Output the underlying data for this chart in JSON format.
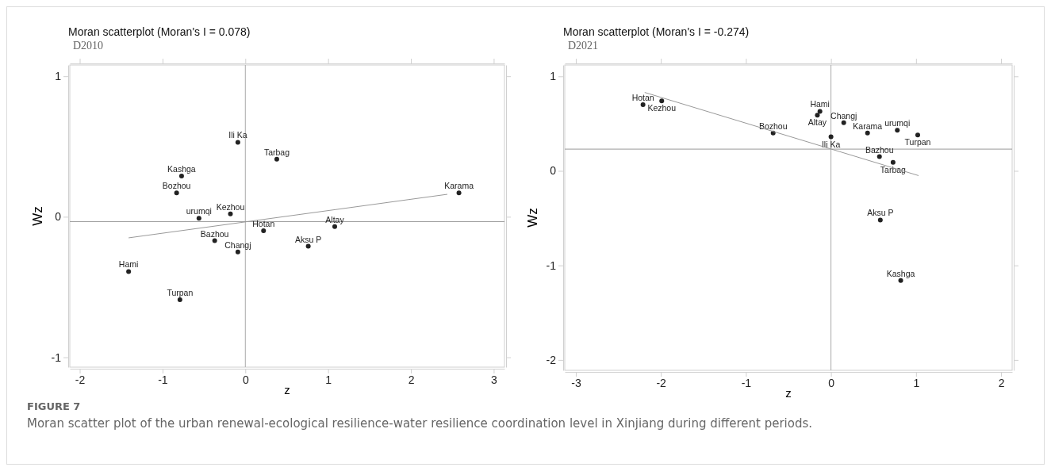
{
  "chart_data": [
    {
      "type": "scatter",
      "title": "Moran scatterplot (Moran's I = 0.078)",
      "subtitle": "D2010",
      "xlabel": "z",
      "ylabel": "Wz",
      "xlim": [
        -2.12,
        3.13
      ],
      "ylim": [
        -1.07,
        1.08
      ],
      "xticks": [
        -2,
        -1,
        0,
        1,
        2,
        3
      ],
      "yticks": [
        -1,
        0,
        1
      ],
      "grid": false,
      "marker": "circle",
      "ref_lines": [
        {
          "axis": "x",
          "value": 0,
          "color": "#aaaaaa"
        },
        {
          "axis": "y",
          "value": -0.034,
          "color": "#999999"
        }
      ],
      "series": [
        {
          "type": "scatter",
          "color": "#222222",
          "x": [
            -0.09,
            0.38,
            -0.77,
            -0.83,
            2.58,
            -0.18,
            -0.56,
            0.22,
            1.08,
            -0.37,
            0.76,
            -0.09,
            -1.41,
            -0.79
          ],
          "values": [
            0.53,
            0.41,
            0.29,
            0.17,
            0.17,
            0.02,
            -0.01,
            -0.1,
            -0.07,
            -0.17,
            -0.21,
            -0.25,
            -0.39,
            -0.59
          ],
          "value_labels": [
            "Ili Ka",
            "Tarbag",
            "Kashga",
            "Bozhou",
            "Karama",
            "Kezhou",
            "urumqi",
            "Hotan",
            "Altay",
            "Bazhou",
            "Aksu P",
            "Changj",
            "Hami",
            "Turpan"
          ]
        },
        {
          "type": "line",
          "color": "#999999",
          "x": [
            -1.41,
            2.44
          ],
          "values": [
            -0.15,
            0.16
          ],
          "line_style": "solid",
          "marker": "none"
        }
      ],
      "annotations": [
        "FIGURE 7",
        "Moran scatter plot of the urban renewal-ecological resilience-water resilience coordination level in Xinjiang during different periods."
      ]
    },
    {
      "type": "scatter",
      "title": "Moran scatterplot (Moran's I = -0.274)",
      "subtitle": "D2021",
      "xlabel": "z",
      "ylabel": "Wz",
      "xlim": [
        -3.13,
        2.13
      ],
      "ylim": [
        -2.11,
        1.12
      ],
      "xticks": [
        -3,
        -2,
        -1,
        0,
        1,
        2
      ],
      "yticks": [
        -2,
        -1,
        0,
        1
      ],
      "grid": false,
      "marker": "circle",
      "ref_lines": [
        {
          "axis": "x",
          "value": 0,
          "color": "#aaaaaa"
        },
        {
          "axis": "y",
          "value": 0.23,
          "color": "#999999"
        }
      ],
      "series": [
        {
          "type": "scatter",
          "color": "#222222",
          "x": [
            -2.21,
            -1.99,
            -0.13,
            -0.16,
            0.15,
            -0.68,
            0.0,
            0.43,
            0.78,
            1.02,
            0.57,
            0.73,
            0.58,
            0.82
          ],
          "values": [
            0.7,
            0.74,
            0.63,
            0.59,
            0.51,
            0.4,
            0.36,
            0.4,
            0.43,
            0.38,
            0.15,
            0.09,
            -0.52,
            -1.16
          ],
          "value_labels": [
            "Hotan",
            "Kezhou",
            "Hami",
            "Altay",
            "Changj",
            "Bozhou",
            "Ili Ka",
            "Karama",
            "urumqi",
            "Turpan",
            "Bazhou",
            "Tarbag",
            "Aksu P",
            "Kashga"
          ]
        },
        {
          "type": "line",
          "color": "#999999",
          "x": [
            -2.19,
            1.03
          ],
          "values": [
            0.83,
            -0.05
          ],
          "line_style": "solid",
          "marker": "none"
        }
      ]
    }
  ]
}
